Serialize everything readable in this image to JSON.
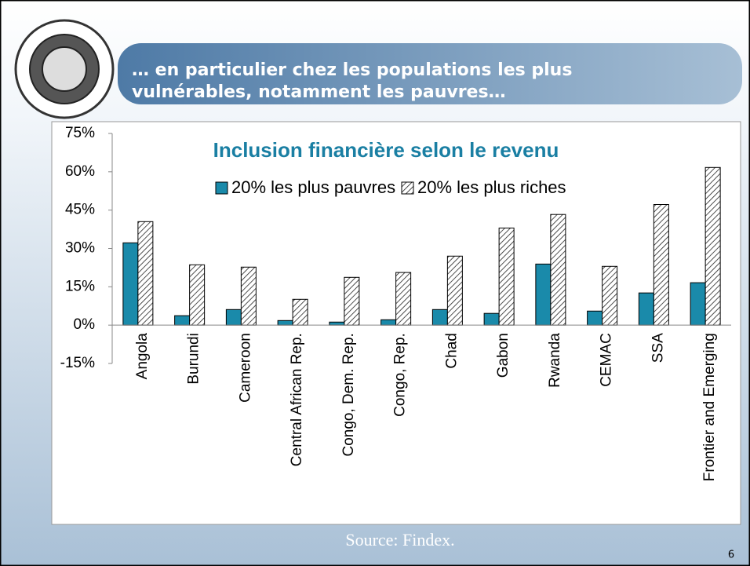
{
  "slide": {
    "title_lines": [
      "… en particulier chez les populations les plus",
      "vulnérables, notamment les pauvres…"
    ],
    "source": "Source: Findex.",
    "page_number": "6"
  },
  "chart_data": {
    "type": "bar",
    "title": "Inclusion financière selon le revenu",
    "categories": [
      "Angola",
      "Burundi",
      "Cameroon",
      "Central African Rep.",
      "Congo, Dem. Rep.",
      "Congo, Rep.",
      "Chad",
      "Gabon",
      "Rwanda",
      "CEMAC",
      "SSA",
      "Frontier and Emerging"
    ],
    "series": [
      {
        "name": "20% les plus pauvres",
        "color": "#1a8aaa",
        "values": [
          32.2,
          3.7,
          6.1,
          1.8,
          1.2,
          2.1,
          6.1,
          4.6,
          23.9,
          5.5,
          12.6,
          16.6
        ]
      },
      {
        "name": "20% les plus riches",
        "color": "hatched",
        "values": [
          40.5,
          23.6,
          22.7,
          10.1,
          18.7,
          20.6,
          27,
          38,
          43.3,
          23,
          47.2,
          61.7
        ]
      }
    ],
    "ylim": [
      -15,
      75
    ],
    "yticks": [
      {
        "value": -15,
        "label": "-15%"
      },
      {
        "value": 0,
        "label": "0%"
      },
      {
        "value": 15,
        "label": "15%"
      },
      {
        "value": 30,
        "label": "30%"
      },
      {
        "value": 45,
        "label": "45%"
      },
      {
        "value": 60,
        "label": "60%"
      },
      {
        "value": 75,
        "label": "75%"
      }
    ],
    "legend": "top"
  }
}
